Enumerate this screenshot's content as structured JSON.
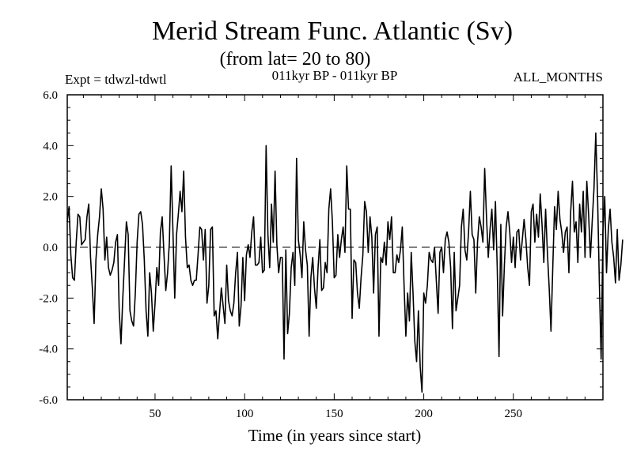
{
  "chart_data": {
    "type": "line",
    "title": "Merid Stream Func. Atlantic (Sv)",
    "subtitle": "(from lat= 20 to 80)",
    "experiment": "Expt = tdwzl-tdwtl",
    "period": "011kyr BP - 011kyr BP",
    "months": "ALL_MONTHS",
    "xlabel": "Time (in years since start)",
    "ylabel": "",
    "xlim": [
      1,
      300
    ],
    "ylim": [
      -6,
      6
    ],
    "x_ticks": [
      {
        "value": 50,
        "label": "50"
      },
      {
        "value": 100,
        "label": "100"
      },
      {
        "value": 150,
        "label": "150"
      },
      {
        "value": 200,
        "label": "200"
      },
      {
        "value": 250,
        "label": "250"
      }
    ],
    "y_ticks": [
      {
        "value": 6,
        "label": "6.0"
      },
      {
        "value": 4,
        "label": "4.0"
      },
      {
        "value": 2,
        "label": "2.0"
      },
      {
        "value": 0,
        "label": "0.0"
      },
      {
        "value": -2,
        "label": "-2.0"
      },
      {
        "value": -4,
        "label": "-4.0"
      },
      {
        "value": -6,
        "label": "-6.0"
      }
    ],
    "zero_line": 0,
    "series": [
      {
        "name": "Merid Stream Func. Atlantic",
        "x_start": 1,
        "x_step": 1,
        "values": [
          1.0,
          1.6,
          -0.3,
          -1.2,
          -1.3,
          0.2,
          1.3,
          1.2,
          0.1,
          0.2,
          0.3,
          1.2,
          1.7,
          -0.4,
          -1.6,
          -3.0,
          -0.5,
          0.5,
          1.2,
          2.3,
          1.5,
          -0.5,
          0.4,
          -0.8,
          -1.1,
          -0.9,
          -0.6,
          0.2,
          0.5,
          -2.5,
          -3.8,
          -2.0,
          -0.5,
          1.0,
          0.5,
          -2.5,
          -2.9,
          -3.1,
          -1.8,
          0.2,
          1.3,
          1.4,
          0.9,
          -0.5,
          -2.5,
          -3.5,
          -1.0,
          -1.8,
          -3.3,
          -2.2,
          -0.8,
          -1.5,
          0.6,
          1.2,
          -0.3,
          -1.7,
          -1.0,
          0.2,
          3.2,
          0.6,
          -2.0,
          0.5,
          1.3,
          2.2,
          1.4,
          3.0,
          0.4,
          -0.8,
          -0.7,
          -1.3,
          -1.5,
          -1.3,
          -1.3,
          -0.3,
          0.8,
          0.7,
          -0.5,
          0.7,
          -2.2,
          -1.5,
          0.7,
          0.8,
          -2.7,
          -2.5,
          -3.6,
          -2.6,
          -1.6,
          -2.3,
          -3.0,
          -0.7,
          -2.1,
          -2.5,
          -2.7,
          -2.2,
          -1.0,
          -0.2,
          -3.1,
          -2.3,
          -0.4,
          -2.1,
          -0.3,
          0.1,
          -0.4,
          0.6,
          1.2,
          -0.7,
          -0.7,
          -0.6,
          0.4,
          -1.0,
          -0.9,
          4.0,
          0.5,
          -0.8,
          1.7,
          0.2,
          3.0,
          0.1,
          -1.0,
          -0.4,
          -0.4,
          -4.4,
          -0.1,
          -3.4,
          -2.6,
          -0.8,
          -0.2,
          -1.5,
          3.5,
          0.3,
          -0.3,
          -1.2,
          1.0,
          -0.1,
          -0.7,
          -3.5,
          -1.2,
          -0.4,
          -1.6,
          -2.4,
          -0.8,
          0.3,
          -1.7,
          -1.6,
          -0.6,
          -1.0,
          1.5,
          2.3,
          1.0,
          -1.2,
          -1.1,
          0.5,
          -0.4,
          0.3,
          0.8,
          -0.2,
          3.2,
          1.5,
          1.5,
          -2.8,
          -0.5,
          -0.6,
          -1.8,
          -2.4,
          -1.2,
          -0.3,
          1.8,
          1.4,
          -0.2,
          1.2,
          0.4,
          -1.8,
          0.5,
          0.8,
          -3.5,
          -0.4,
          -0.6,
          0.2,
          -0.7,
          1.0,
          0.3,
          1.2,
          -1.0,
          -1.0,
          -0.3,
          -0.6,
          -0.1,
          0.8,
          -1.5,
          -3.5,
          -1.8,
          -2.9,
          -0.2,
          -1.8,
          -3.7,
          -4.5,
          -2.5,
          -4.7,
          -5.7,
          -1.8,
          -2.2,
          -1.5,
          -0.2,
          -0.5,
          -0.6,
          0.0,
          -1.3,
          -2.6,
          -0.2,
          0.0,
          -1.0,
          0.3,
          0.6,
          0.2,
          -0.8,
          -3.2,
          -0.2,
          -2.5,
          -2.0,
          -1.5,
          0.8,
          1.5,
          -0.1,
          -0.5,
          0.6,
          2.2,
          0.5,
          0.3,
          -1.8,
          0.2,
          1.2,
          0.8,
          0.2,
          3.1,
          1.2,
          -0.4,
          0.7,
          1.5,
          -0.1,
          1.8,
          -0.8,
          -4.3,
          0.9,
          -2.7,
          -0.7,
          0.8,
          1.4,
          0.6,
          -0.6,
          0.4,
          -0.8,
          0.6,
          0.7,
          -0.5,
          0.3,
          1.1,
          0.3,
          -0.8,
          -1.5,
          1.4,
          1.7,
          0.2,
          1.3,
          0.4,
          2.1,
          0.9,
          -0.6,
          1.5,
          -0.2,
          -1.6,
          -3.3,
          -0.8,
          1.6,
          0.7,
          2.2,
          1.1,
          0.6,
          -0.2,
          0.6,
          0.8,
          -1.0,
          1.4,
          2.6,
          0.6,
          1.0,
          -0.6,
          1.7,
          0.6,
          2.2,
          -0.4,
          2.6,
          1.3,
          -0.4,
          1.0,
          2.3,
          4.5,
          2.0,
          -1.4,
          -4.4,
          0.6,
          2.0,
          -1.0,
          0.7,
          1.5,
          0.2,
          -0.4,
          -1.4,
          0.7,
          -1.3,
          -0.7,
          0.3
        ]
      }
    ]
  }
}
